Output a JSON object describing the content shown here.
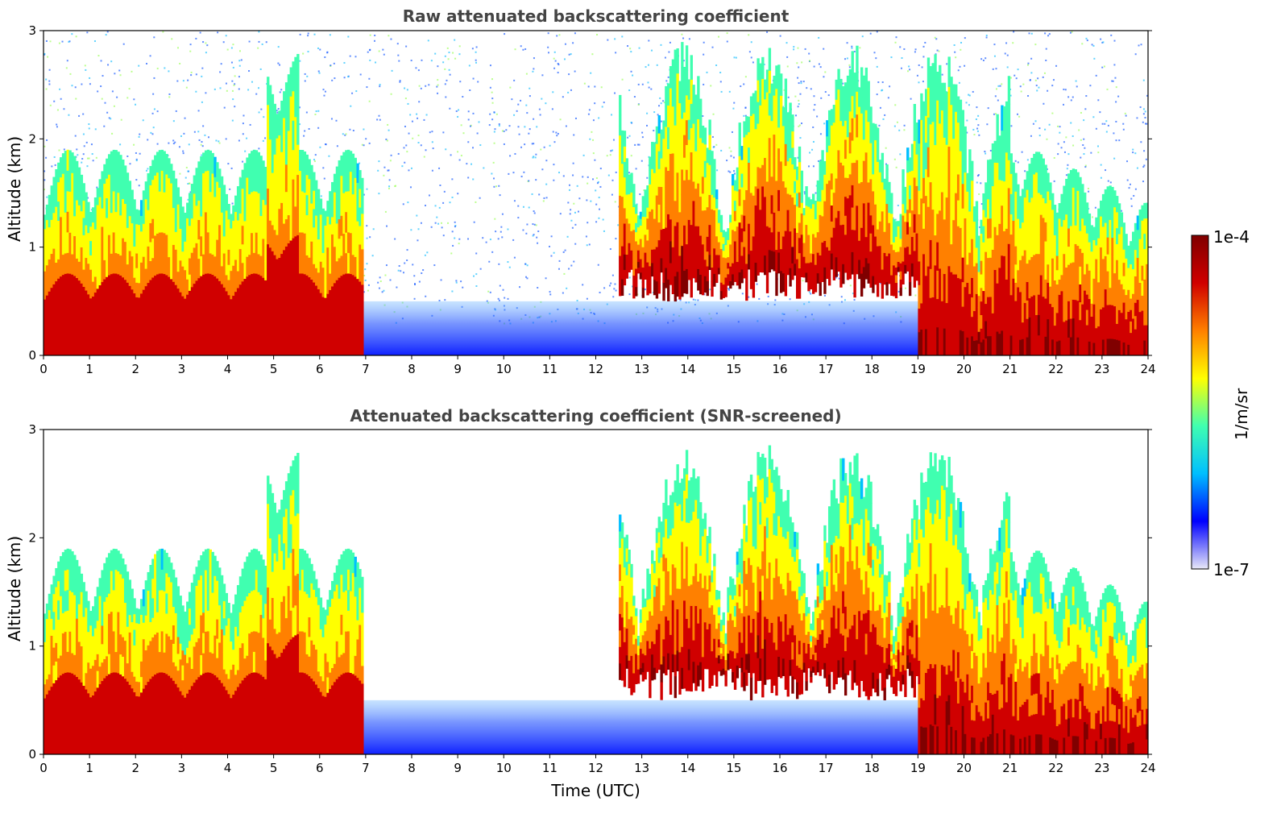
{
  "chart_data": [
    {
      "type": "heatmap",
      "title": "Raw attenuated backscattering coefficient",
      "xlabel": "",
      "ylabel": "Altitude (km)",
      "xlim": [
        0,
        24
      ],
      "ylim": [
        0,
        3
      ],
      "x_ticks": [
        "0",
        "1",
        "2",
        "3",
        "4",
        "5",
        "6",
        "7",
        "8",
        "9",
        "10",
        "11",
        "12",
        "13",
        "14",
        "15",
        "16",
        "17",
        "18",
        "19",
        "20",
        "21",
        "22",
        "23",
        "24"
      ],
      "y_ticks": [
        "0",
        "1",
        "2",
        "3"
      ],
      "screened": false
    },
    {
      "type": "heatmap",
      "title": "Attenuated backscattering coefficient (SNR-screened)",
      "xlabel": "Time (UTC)",
      "ylabel": "Altitude (km)",
      "xlim": [
        0,
        24
      ],
      "ylim": [
        0,
        3
      ],
      "x_ticks": [
        "0",
        "1",
        "2",
        "3",
        "4",
        "5",
        "6",
        "7",
        "8",
        "9",
        "10",
        "11",
        "12",
        "13",
        "14",
        "15",
        "16",
        "17",
        "18",
        "19",
        "20",
        "21",
        "22",
        "23",
        "24"
      ],
      "y_ticks": [
        "0",
        "1",
        "2",
        "3"
      ],
      "screened": true
    }
  ],
  "colorbar": {
    "label": "1/m/sr",
    "max_label": "1e-4",
    "min_label": "1e-7",
    "colormap": "jet",
    "scale": "log",
    "range": [
      1e-07,
      0.0001
    ],
    "colors": [
      "#e8e8f8",
      "#0000ff",
      "#00bfff",
      "#40ffb0",
      "#ffff00",
      "#ff8000",
      "#d00000",
      "#800000"
    ]
  }
}
